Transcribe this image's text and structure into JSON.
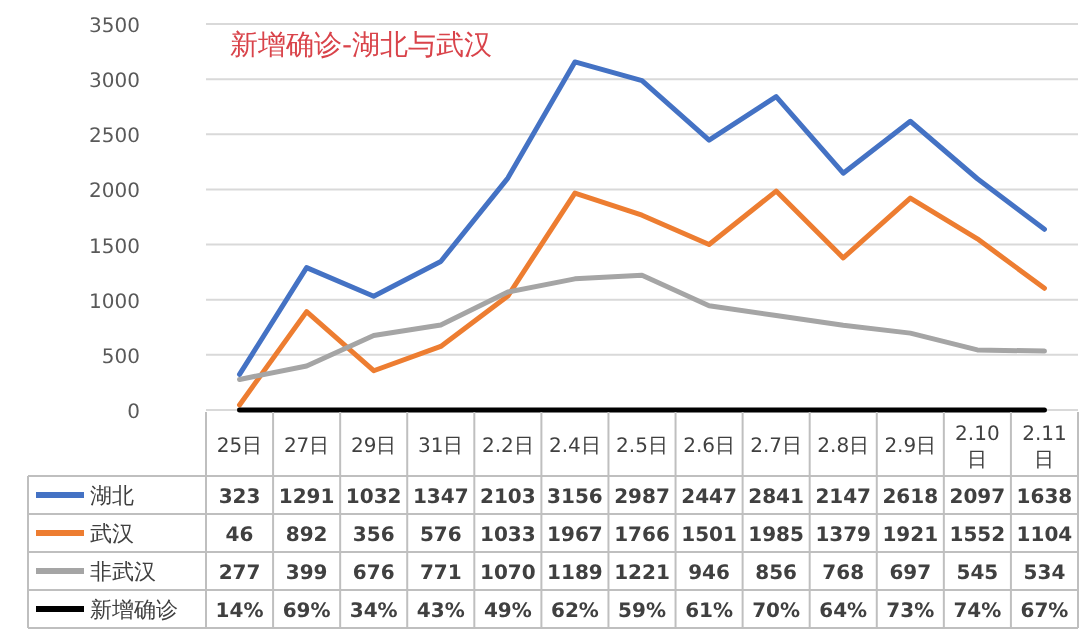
{
  "chart_data": {
    "type": "line",
    "title": "新增确诊-湖北与武汉",
    "categories": [
      "25日",
      "27日",
      "29日",
      "31日",
      "2.2日",
      "2.4日",
      "2.5日",
      "2.6日",
      "2.7日",
      "2.8日",
      "2.9日",
      "2.10日",
      "2.11日"
    ],
    "ylim": [
      0,
      3500
    ],
    "yticks": [
      0,
      500,
      1000,
      1500,
      2000,
      2500,
      3000,
      3500
    ],
    "grid": "y",
    "legend": "bottom",
    "series": [
      {
        "name": "湖北",
        "color": "#4472c4",
        "values": [
          323,
          1291,
          1032,
          1347,
          2103,
          3156,
          2987,
          2447,
          2841,
          2147,
          2618,
          2097,
          1638
        ],
        "value_labels": [
          "323",
          "1291",
          "1032",
          "1347",
          "2103",
          "3156",
          "2987",
          "2447",
          "2841",
          "2147",
          "2618",
          "2097",
          "1638"
        ]
      },
      {
        "name": "武汉",
        "color": "#ed7d31",
        "values": [
          46,
          892,
          356,
          576,
          1033,
          1967,
          1766,
          1501,
          1985,
          1379,
          1921,
          1552,
          1104
        ],
        "value_labels": [
          "46",
          "892",
          "356",
          "576",
          "1033",
          "1967",
          "1766",
          "1501",
          "1985",
          "1379",
          "1921",
          "1552",
          "1104"
        ]
      },
      {
        "name": "非武汉",
        "color": "#a5a5a5",
        "values": [
          277,
          399,
          676,
          771,
          1070,
          1189,
          1221,
          946,
          856,
          768,
          697,
          545,
          534
        ],
        "value_labels": [
          "277",
          "399",
          "676",
          "771",
          "1070",
          "1189",
          "1221",
          "946",
          "856",
          "768",
          "697",
          "545",
          "534"
        ]
      },
      {
        "name": "新增确诊",
        "color": "#000000",
        "values": [
          0.14,
          0.69,
          0.34,
          0.43,
          0.49,
          0.62,
          0.59,
          0.61,
          0.7,
          0.64,
          0.73,
          0.74,
          0.67
        ],
        "value_labels": [
          "14%",
          "69%",
          "34%",
          "43%",
          "49%",
          "62%",
          "59%",
          "61%",
          "70%",
          "64%",
          "73%",
          "74%",
          "67%"
        ]
      }
    ]
  }
}
